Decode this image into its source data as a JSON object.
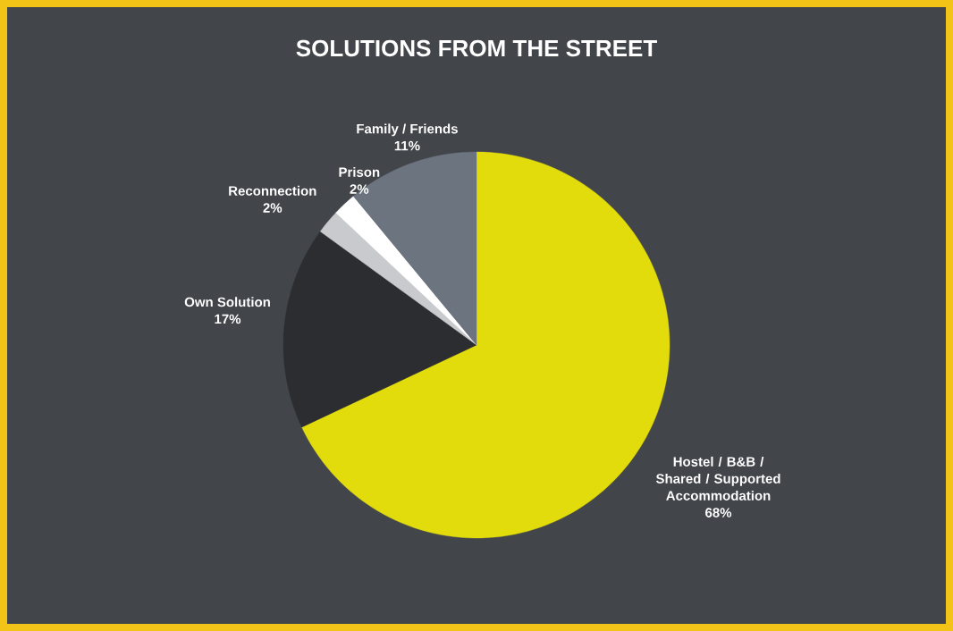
{
  "chart_data": {
    "type": "pie",
    "title": "SOLUTIONS FROM THE STREET",
    "categories": [
      "Hostel / B&B / Shared / Supported Accommodation",
      "Own Solution",
      "Reconnection",
      "Prison",
      "Family / Friends"
    ],
    "values": [
      68,
      17,
      2,
      2,
      11
    ],
    "value_labels": [
      "68%",
      "17%",
      "2%",
      "2%",
      "11%"
    ],
    "colors": [
      "#e3dc0c",
      "#2b2d31",
      "#c9cacd",
      "#ffffff",
      "#6c7480"
    ]
  }
}
